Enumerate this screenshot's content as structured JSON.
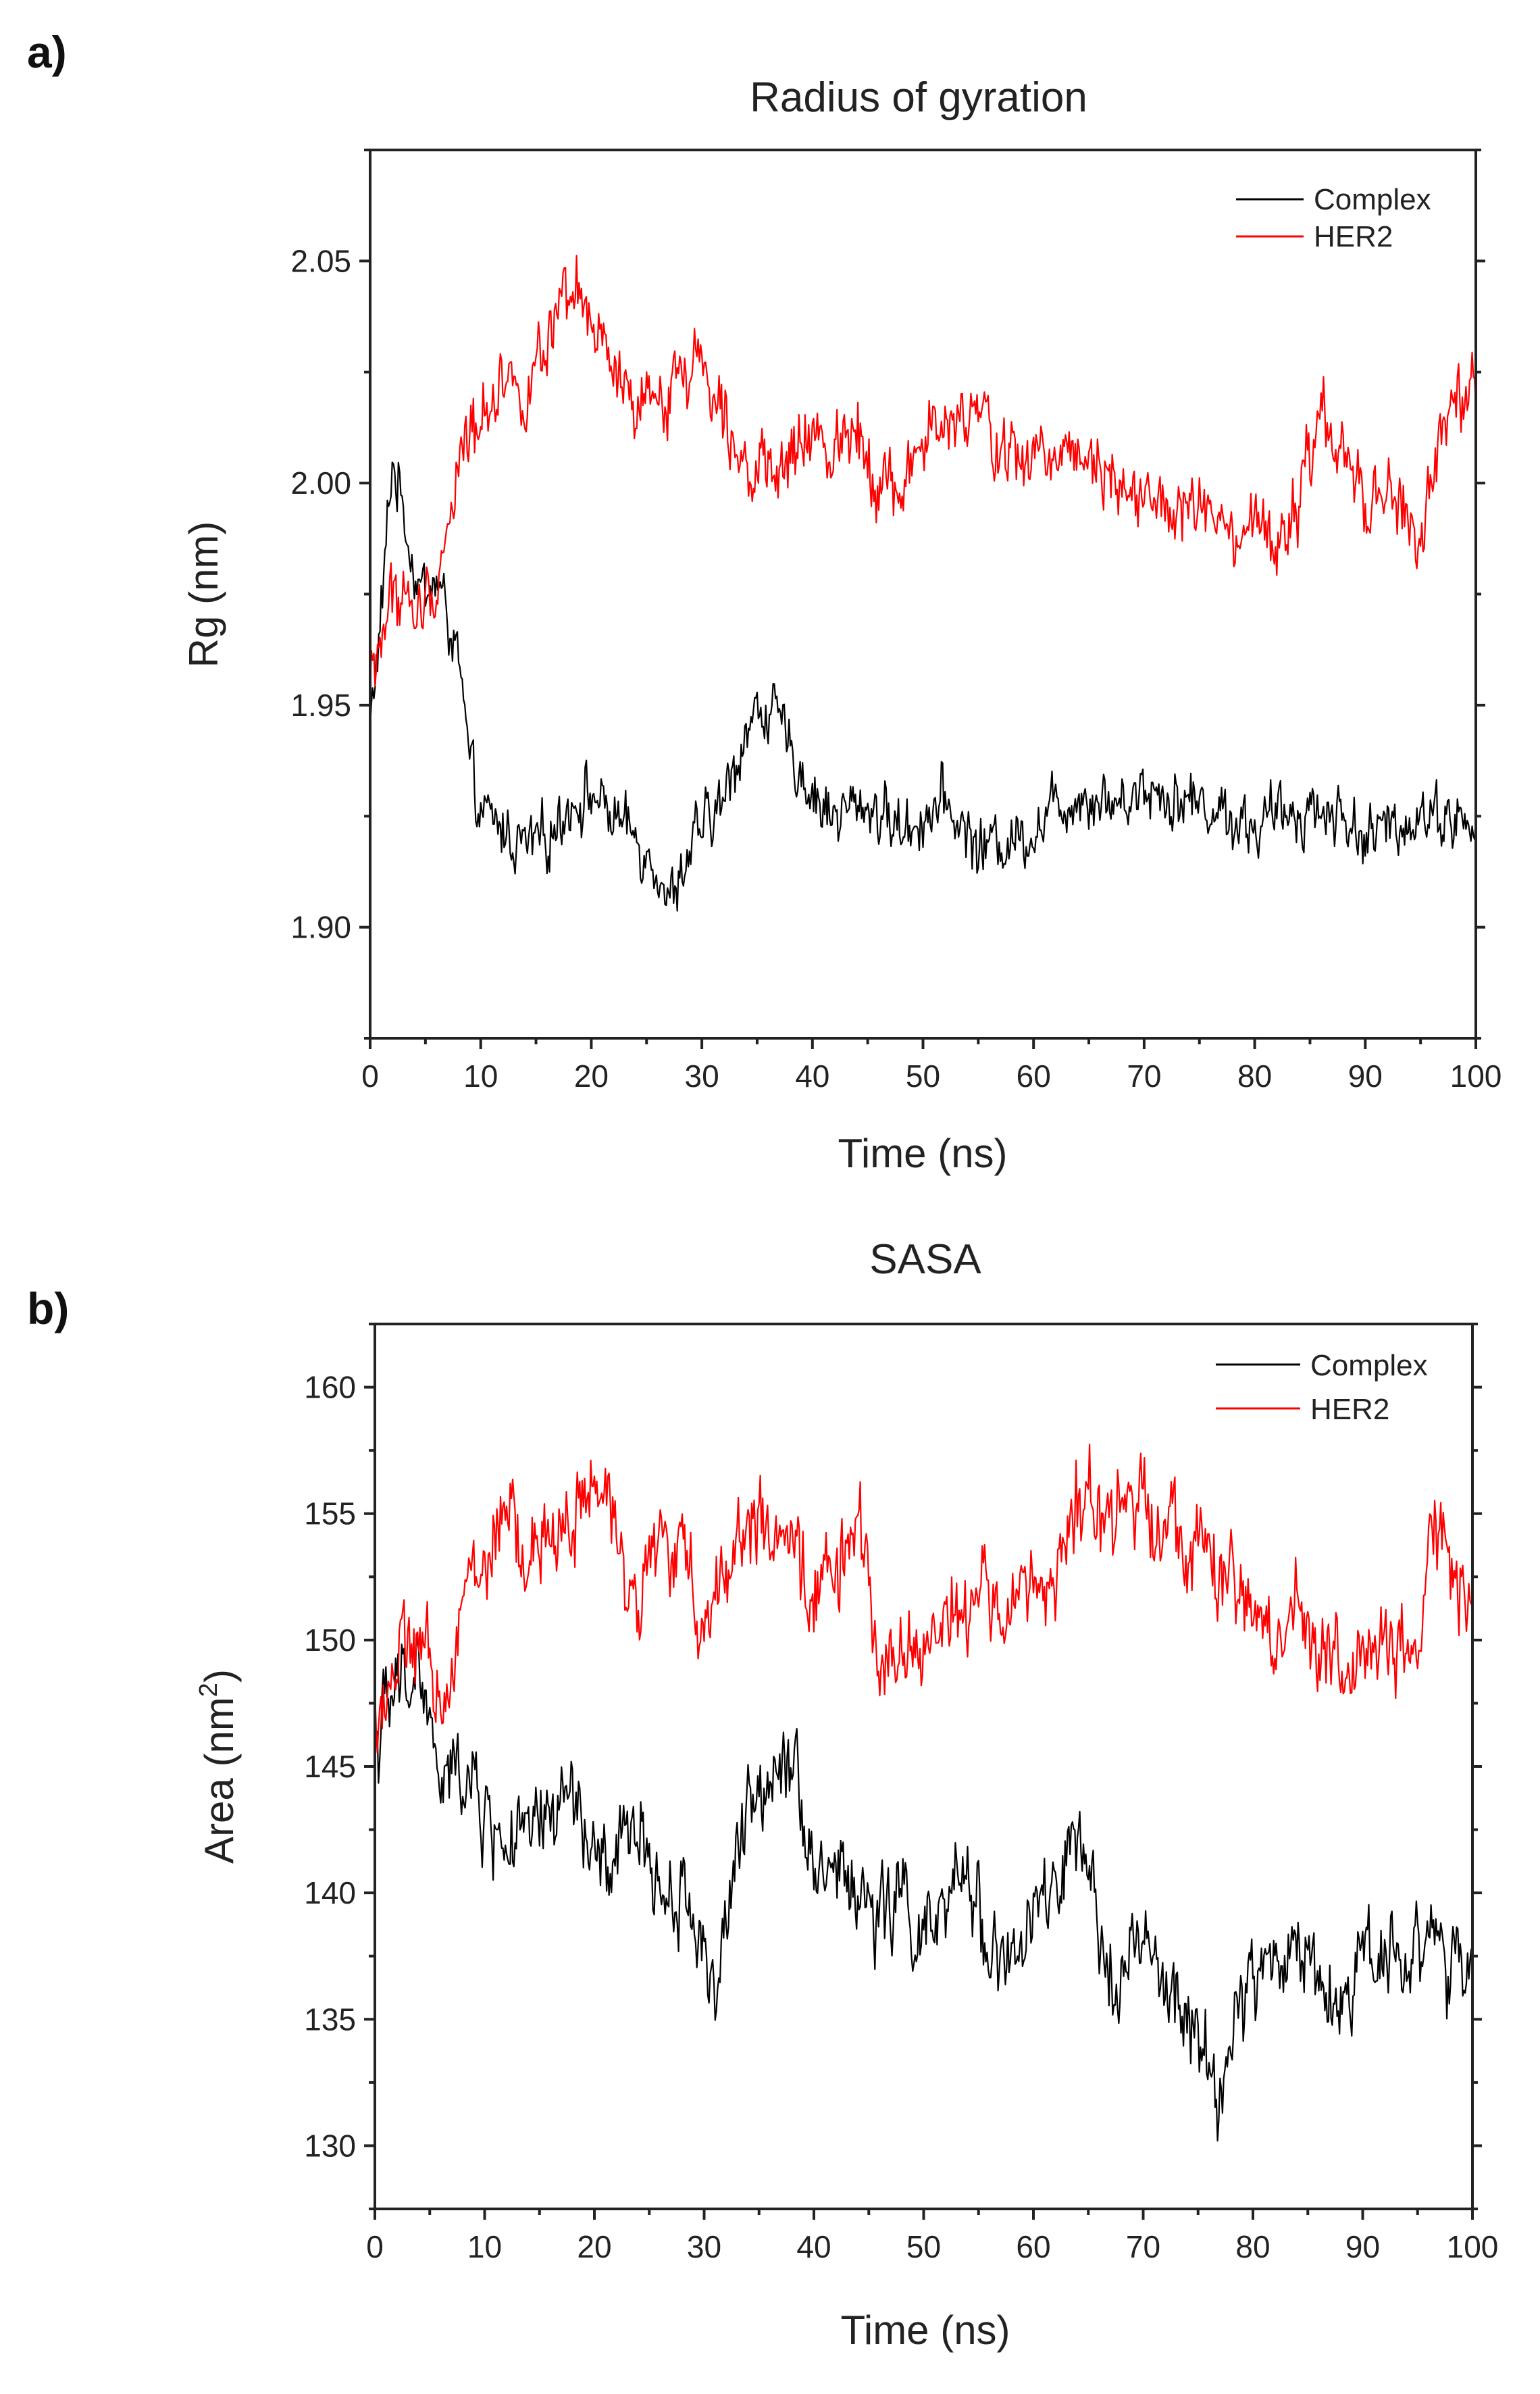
{
  "chart_data": [
    {
      "panel_label": "a)",
      "type": "line",
      "title": "Radius of gyration",
      "xlabel": "Time (ns)",
      "ylabel": "Rg (nm)",
      "xlim": [
        0,
        100
      ],
      "ylim": [
        1.875,
        2.075
      ],
      "xticks": [
        "0",
        "10",
        "20",
        "30",
        "40",
        "50",
        "60",
        "70",
        "80",
        "90",
        "100"
      ],
      "yticks": [
        "1.90",
        "1.95",
        "2.00",
        "2.05"
      ],
      "legend_position": "top-right",
      "grid": false,
      "series": [
        {
          "name": "Complex",
          "color": "#000000",
          "x": [
            0,
            1,
            2,
            3,
            4,
            5,
            6,
            7,
            8,
            9,
            10,
            12,
            14,
            16,
            18,
            20,
            22,
            24,
            26,
            27,
            28,
            30,
            32,
            34,
            36,
            38,
            40,
            42,
            45,
            48,
            50,
            52,
            55,
            58,
            60,
            62,
            65,
            68,
            70,
            72,
            75,
            78,
            80,
            82,
            85,
            88,
            90,
            92,
            95,
            98,
            100
          ],
          "values": [
            1.945,
            1.97,
            2.005,
            1.995,
            1.98,
            1.975,
            1.978,
            1.97,
            1.96,
            1.935,
            1.925,
            1.922,
            1.918,
            1.92,
            1.928,
            1.93,
            1.925,
            1.92,
            1.915,
            1.905,
            1.912,
            1.922,
            1.928,
            1.945,
            1.95,
            1.94,
            1.93,
            1.925,
            1.928,
            1.922,
            1.925,
            1.928,
            1.918,
            1.92,
            1.922,
            1.928,
            1.93,
            1.928,
            1.932,
            1.93,
            1.928,
            1.925,
            1.922,
            1.925,
            1.927,
            1.925,
            1.92,
            1.922,
            1.926,
            1.925,
            1.92
          ],
          "noise": 0.007
        },
        {
          "name": "HER2",
          "color": "#ff0000",
          "x": [
            0,
            1,
            2,
            3,
            4,
            5,
            6,
            7,
            8,
            10,
            12,
            14,
            16,
            18,
            19,
            20,
            22,
            24,
            26,
            28,
            30,
            32,
            34,
            36,
            38,
            40,
            42,
            44,
            46,
            48,
            50,
            52,
            55,
            58,
            60,
            62,
            65,
            68,
            70,
            72,
            75,
            78,
            80,
            82,
            84,
            86,
            88,
            90,
            92,
            94,
            95,
            96,
            98,
            100
          ],
          "values": [
            1.955,
            1.965,
            1.975,
            1.975,
            1.97,
            1.972,
            1.978,
            1.99,
            2.005,
            2.015,
            2.025,
            2.02,
            2.03,
            2.04,
            2.042,
            2.035,
            2.025,
            2.015,
            2.018,
            2.025,
            2.028,
            2.018,
            2.005,
            2.0,
            2.005,
            2.01,
            2.008,
            2.015,
            2.0,
            1.998,
            2.01,
            2.012,
            2.015,
            2.005,
            2.005,
            2.008,
            2.008,
            2.0,
            1.998,
            1.992,
            1.995,
            1.985,
            1.99,
            1.985,
            1.995,
            2.015,
            2.005,
            1.995,
            1.998,
            1.99,
            1.985,
            2.005,
            2.015,
            2.02
          ],
          "noise": 0.008
        }
      ]
    },
    {
      "panel_label": "b)",
      "type": "line",
      "title": "SASA",
      "xlabel": "Time (ns)",
      "ylabel": "Area (nm",
      "ylabel_sup": "2",
      "ylabel_close": ")",
      "xlim": [
        0,
        100
      ],
      "ylim": [
        127.5,
        162.5
      ],
      "xticks": [
        "0",
        "10",
        "20",
        "30",
        "40",
        "50",
        "60",
        "70",
        "80",
        "90",
        "100"
      ],
      "yticks": [
        "130",
        "135",
        "140",
        "145",
        "150",
        "155",
        "160"
      ],
      "legend_position": "top-right",
      "grid": false,
      "series": [
        {
          "name": "Complex",
          "color": "#000000",
          "x": [
            0,
            2,
            4,
            6,
            8,
            10,
            12,
            14,
            16,
            18,
            20,
            22,
            24,
            26,
            28,
            30,
            31,
            32,
            34,
            36,
            38,
            40,
            42,
            44,
            46,
            48,
            50,
            52,
            54,
            56,
            58,
            60,
            62,
            64,
            66,
            68,
            70,
            72,
            74,
            76,
            77,
            78,
            80,
            82,
            84,
            86,
            88,
            90,
            92,
            94,
            96,
            98,
            100
          ],
          "values": [
            146,
            148,
            149,
            144,
            145,
            143,
            142,
            142,
            143,
            144,
            141,
            141,
            143,
            140,
            140,
            138,
            136,
            139,
            143,
            145,
            146,
            141,
            141,
            140,
            139,
            140,
            138,
            139,
            141,
            138,
            137,
            139,
            140,
            142,
            138,
            137,
            138,
            136,
            135,
            133,
            132,
            134,
            137,
            137,
            138,
            137,
            135,
            138,
            138,
            137,
            139,
            137,
            136
          ],
          "noise": 1.8
        },
        {
          "name": "HER2",
          "color": "#ff0000",
          "x": [
            0,
            2,
            4,
            6,
            8,
            10,
            12,
            14,
            16,
            18,
            20,
            22,
            24,
            26,
            28,
            30,
            32,
            34,
            36,
            38,
            40,
            42,
            44,
            46,
            48,
            50,
            52,
            54,
            56,
            58,
            60,
            62,
            64,
            65,
            66,
            68,
            70,
            72,
            74,
            76,
            78,
            80,
            82,
            84,
            86,
            88,
            90,
            92,
            94,
            95,
            96,
            98,
            100
          ],
          "values": [
            147,
            149,
            150,
            147,
            152,
            153,
            155,
            153,
            154,
            155,
            156,
            154,
            152,
            154,
            153,
            151,
            153,
            155,
            154,
            153,
            152,
            153,
            154,
            150,
            149,
            150,
            151,
            151,
            152,
            151,
            152,
            153,
            155,
            156,
            154,
            155,
            156,
            155,
            154,
            153,
            152,
            151,
            150,
            151,
            150,
            149,
            149,
            150,
            149,
            148,
            155,
            153,
            150
          ],
          "noise": 1.8
        }
      ]
    }
  ]
}
